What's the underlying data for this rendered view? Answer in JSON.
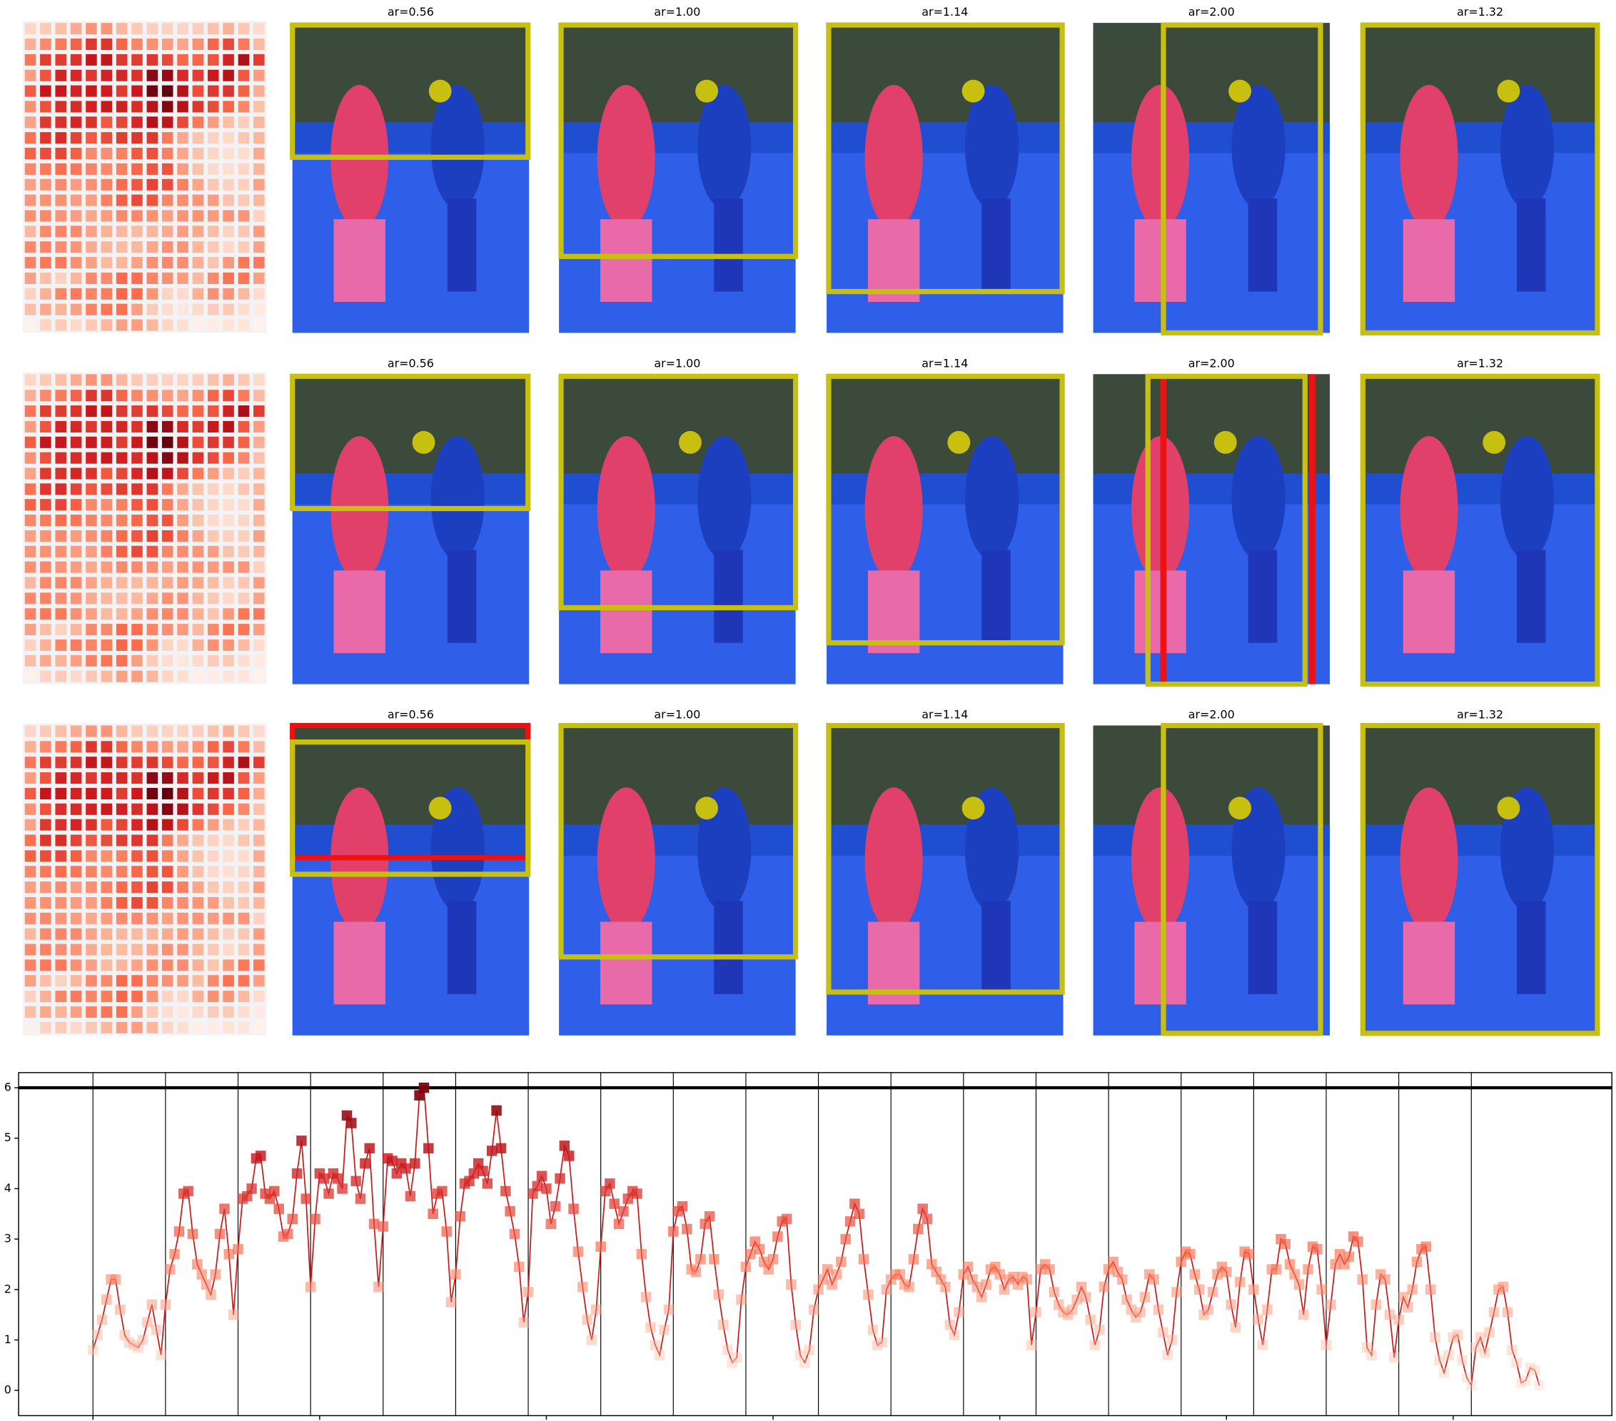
{
  "panels": [
    {
      "titles": [
        "ar=0.56",
        "ar=1.00",
        "ar=1.14",
        "ar=2.00",
        "ar=1.32"
      ]
    },
    {
      "titles": [
        "ar=0.56",
        "ar=1.00",
        "ar=1.14",
        "ar=2.00",
        "ar=1.32"
      ]
    },
    {
      "titles": [
        "ar=0.56",
        "ar=1.00",
        "ar=1.14",
        "ar=2.00",
        "ar=1.32"
      ]
    }
  ],
  "chart_data": {
    "type": "line",
    "color": "#cc1a1a",
    "marker": "square",
    "values": [
      0.8,
      1.1,
      1.4,
      1.8,
      2.2,
      2.2,
      1.6,
      1.1,
      0.95,
      0.9,
      0.85,
      1.0,
      1.35,
      1.7,
      1.2,
      0.7,
      1.7,
      2.4,
      2.7,
      3.15,
      3.9,
      3.95,
      3.1,
      2.5,
      2.3,
      2.1,
      1.9,
      2.3,
      3.1,
      3.6,
      2.7,
      1.5,
      2.8,
      3.8,
      3.85,
      4.0,
      4.6,
      4.65,
      3.9,
      3.8,
      3.95,
      3.6,
      3.05,
      3.1,
      3.4,
      4.3,
      4.95,
      3.8,
      2.05,
      3.4,
      4.3,
      4.2,
      3.9,
      4.3,
      4.2,
      4.0,
      5.45,
      5.3,
      4.15,
      3.8,
      4.5,
      4.8,
      3.3,
      2.05,
      3.25,
      4.6,
      4.55,
      4.3,
      4.5,
      4.4,
      3.85,
      4.5,
      5.85,
      6.0,
      4.8,
      3.5,
      3.9,
      3.95,
      3.15,
      1.75,
      2.3,
      3.45,
      4.1,
      4.15,
      4.3,
      4.5,
      4.35,
      4.1,
      4.75,
      5.55,
      4.8,
      3.95,
      3.55,
      3.1,
      2.45,
      1.35,
      1.95,
      3.9,
      4.05,
      4.25,
      4.0,
      3.3,
      3.65,
      4.2,
      4.85,
      4.65,
      3.6,
      2.75,
      2.05,
      1.4,
      1.0,
      1.6,
      2.85,
      3.95,
      4.1,
      3.7,
      3.3,
      3.55,
      3.8,
      3.95,
      3.9,
      2.7,
      1.85,
      1.25,
      0.9,
      0.7,
      1.2,
      1.6,
      3.15,
      3.55,
      3.65,
      3.2,
      2.4,
      2.35,
      2.6,
      3.3,
      3.45,
      2.6,
      1.9,
      1.3,
      0.8,
      0.55,
      0.65,
      1.8,
      2.45,
      2.7,
      2.95,
      2.8,
      2.55,
      2.4,
      2.6,
      3.05,
      3.35,
      3.4,
      2.1,
      1.3,
      0.7,
      0.55,
      0.8,
      1.6,
      2.0,
      2.2,
      2.4,
      2.1,
      2.3,
      2.55,
      3.0,
      3.35,
      3.7,
      3.5,
      2.6,
      1.9,
      1.2,
      0.9,
      0.95,
      2.0,
      2.2,
      2.3,
      2.3,
      2.1,
      2.05,
      2.6,
      3.2,
      3.6,
      3.4,
      2.5,
      2.35,
      2.2,
      2.05,
      1.3,
      1.1,
      1.55,
      2.3,
      2.45,
      2.2,
      2.05,
      1.85,
      2.1,
      2.4,
      2.45,
      2.3,
      2.0,
      2.2,
      2.25,
      2.1,
      2.25,
      2.2,
      0.9,
      1.55,
      2.4,
      2.5,
      2.4,
      1.95,
      1.7,
      1.55,
      1.5,
      1.6,
      1.8,
      2.05,
      1.85,
      1.4,
      0.9,
      1.2,
      2.05,
      2.4,
      2.55,
      2.35,
      2.2,
      1.8,
      1.6,
      1.45,
      1.55,
      1.85,
      2.3,
      2.2,
      1.6,
      1.15,
      0.7,
      1.0,
      1.95,
      2.55,
      2.75,
      2.7,
      2.3,
      2.0,
      1.5,
      1.6,
      1.95,
      2.3,
      2.45,
      2.35,
      1.7,
      1.25,
      2.15,
      2.75,
      2.7,
      2.0,
      1.4,
      0.9,
      1.6,
      2.4,
      2.4,
      3.0,
      2.9,
      2.5,
      2.3,
      2.1,
      1.5,
      2.4,
      2.85,
      2.8,
      2.0,
      0.9,
      1.7,
      2.5,
      2.7,
      2.5,
      2.65,
      3.05,
      2.95,
      2.2,
      0.85,
      0.7,
      1.7,
      2.3,
      2.2,
      1.5,
      0.65,
      1.4,
      1.85,
      1.65,
      2.0,
      2.55,
      2.8,
      2.85,
      2.0,
      1.05,
      0.6,
      0.35,
      0.7,
      1.05,
      1.1,
      0.6,
      0.25,
      0.1,
      0.85,
      1.05,
      0.75,
      1.15,
      1.55,
      2.0,
      2.05,
      1.55,
      0.8,
      0.55,
      0.15,
      0.2,
      0.45,
      0.4,
      0.1
    ],
    "xlim": [
      -16.4,
      335
    ],
    "ylim": [
      -0.5,
      6.3
    ],
    "xticks": [
      0,
      50,
      100,
      150,
      200,
      250,
      300
    ],
    "yticks": [
      0,
      1,
      2,
      3,
      4,
      5,
      6
    ],
    "vlines": [
      0,
      16,
      32,
      48,
      64,
      80,
      96,
      112,
      128,
      144,
      160,
      176,
      192,
      208,
      224,
      240,
      256,
      272,
      288,
      304
    ],
    "hline": 6
  }
}
